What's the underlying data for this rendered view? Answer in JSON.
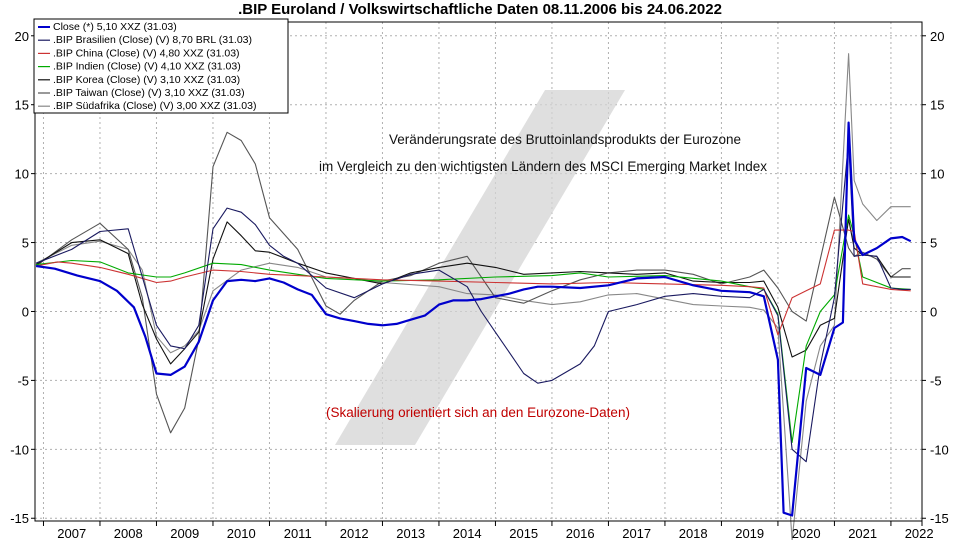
{
  "chart_data": {
    "type": "line",
    "title": ".BIP Euroland / Volkswirtschaftliche Daten 08.11.2006 bis 24.06.2022",
    "ylim": [
      -15.2,
      21
    ],
    "xlim": [
      2006.85,
      2022.55
    ],
    "y_ticks": [
      -15,
      -10,
      -5,
      0,
      5,
      10,
      15,
      20
    ],
    "x_ticks": [
      "2007",
      "2008",
      "2009",
      "2010",
      "2011",
      "2012",
      "2013",
      "2014",
      "2015",
      "2016",
      "2017",
      "2018",
      "2019",
      "2020",
      "2021",
      "2022"
    ],
    "grid": true,
    "legend_position": "top-left",
    "annotations": [
      "Veränderungsrate des Bruttoinlandsprodukts der Eurozone",
      "im Vergleich zu den wichtigsten Ländern des MSCI Emerging Market Index",
      "(Skalierung orientiert sich an den Eurozone-Daten)"
    ],
    "series": [
      {
        "name": "Close (*) 5,10 XXZ (31.03)",
        "color": "#0000cc",
        "x": [
          2006.87,
          2007.2,
          2007.6,
          2008.0,
          2008.3,
          2008.6,
          2008.8,
          2009.0,
          2009.25,
          2009.5,
          2009.75,
          2010.0,
          2010.25,
          2010.5,
          2010.75,
          2011.0,
          2011.25,
          2011.5,
          2011.75,
          2012.0,
          2012.25,
          2012.5,
          2012.75,
          2013.0,
          2013.25,
          2013.5,
          2013.75,
          2014.0,
          2014.25,
          2014.5,
          2014.75,
          2015.0,
          2015.25,
          2015.5,
          2015.75,
          2016.0,
          2016.5,
          2017.0,
          2017.5,
          2018.0,
          2018.5,
          2019.0,
          2019.5,
          2019.75,
          2020.0,
          2020.1,
          2020.25,
          2020.5,
          2020.75,
          2021.0,
          2021.15,
          2021.25,
          2021.35,
          2021.5,
          2021.75,
          2022.0,
          2022.2,
          2022.35
        ],
        "y": [
          3.3,
          3.1,
          2.6,
          2.2,
          1.5,
          0.3,
          -1.8,
          -4.5,
          -4.6,
          -4.0,
          -2.2,
          0.8,
          2.2,
          2.3,
          2.2,
          2.4,
          2.1,
          1.6,
          1.2,
          -0.2,
          -0.5,
          -0.7,
          -0.9,
          -1.0,
          -0.9,
          -0.6,
          -0.3,
          0.5,
          0.8,
          0.8,
          0.9,
          1.1,
          1.3,
          1.6,
          1.8,
          1.8,
          1.7,
          1.9,
          2.4,
          2.5,
          1.9,
          1.5,
          1.4,
          1.1,
          -3.5,
          -14.6,
          -14.8,
          -4.1,
          -4.6,
          -1.2,
          -0.8,
          13.7,
          5.2,
          4.1,
          4.6,
          5.3,
          5.4,
          5.1
        ]
      },
      {
        "name": ".BIP Brasilien (Close) (V) 8,70 BRL (31.03)",
        "color": "#1a1a60",
        "x": [
          2006.87,
          2007.5,
          2008.0,
          2008.5,
          2009.0,
          2009.25,
          2009.5,
          2009.75,
          2010.0,
          2010.25,
          2010.5,
          2010.75,
          2011.0,
          2011.25,
          2011.5,
          2012.0,
          2012.5,
          2013.0,
          2013.5,
          2014.0,
          2014.5,
          2014.75,
          2015.0,
          2015.25,
          2015.5,
          2015.75,
          2016.0,
          2016.5,
          2016.75,
          2017.0,
          2017.5,
          2018.0,
          2018.5,
          2019.0,
          2019.5,
          2019.75,
          2020.0,
          2020.25,
          2020.5,
          2020.75,
          2021.0,
          2021.25,
          2021.35,
          2021.5,
          2021.75,
          2022.0,
          2022.2,
          2022.35
        ],
        "y": [
          3.5,
          4.5,
          5.8,
          6.0,
          -1.0,
          -2.5,
          -2.7,
          -1.0,
          6.0,
          7.5,
          7.2,
          6.3,
          4.8,
          4.0,
          3.5,
          1.7,
          1.0,
          2.0,
          2.7,
          3.0,
          1.8,
          0.0,
          -1.5,
          -3.0,
          -4.5,
          -5.2,
          -5.0,
          -3.8,
          -2.5,
          0.0,
          0.5,
          1.1,
          1.3,
          1.1,
          1.0,
          1.6,
          -0.3,
          -10.0,
          -10.9,
          -3.9,
          1.0,
          12.4,
          4.0,
          4.1,
          4.0,
          1.7,
          1.6,
          1.6
        ]
      },
      {
        "name": ".BIP China (Close) (V) 4,80 XXZ (31.03)",
        "color": "#cc3333",
        "x": [
          2006.87,
          2007.25,
          2007.5,
          2008.0,
          2008.5,
          2009.0,
          2009.25,
          2009.5,
          2010.0,
          2010.5,
          2011.0,
          2011.5,
          2012.0,
          2012.5,
          2013.0,
          2014.0,
          2015.0,
          2016.0,
          2017.0,
          2018.0,
          2019.0,
          2019.5,
          2019.75,
          2020.0,
          2020.25,
          2020.5,
          2020.75,
          2021.0,
          2021.25,
          2021.35,
          2021.5,
          2022.0,
          2022.35
        ],
        "y": [
          3.3,
          3.6,
          3.5,
          3.2,
          2.7,
          2.1,
          2.2,
          2.5,
          3.0,
          2.9,
          2.7,
          2.6,
          2.5,
          2.4,
          2.3,
          2.2,
          2.1,
          2.0,
          2.1,
          2.0,
          1.9,
          1.8,
          1.7,
          -1.7,
          1.0,
          1.5,
          2.0,
          5.9,
          5.9,
          5.8,
          2.0,
          1.6,
          1.5
        ]
      },
      {
        "name": ".BIP Indien (Close) (V) 4,10 XXZ (31.03)",
        "color": "#00aa00",
        "x": [
          2006.87,
          2007.5,
          2008.0,
          2008.5,
          2009.0,
          2009.25,
          2009.5,
          2010.0,
          2010.5,
          2011.0,
          2011.5,
          2012.0,
          2013.0,
          2014.0,
          2015.0,
          2016.0,
          2016.5,
          2017.0,
          2018.0,
          2019.0,
          2019.5,
          2019.75,
          2020.0,
          2020.25,
          2020.5,
          2020.75,
          2021.0,
          2021.25,
          2021.35,
          2021.5,
          2022.0,
          2022.35
        ],
        "y": [
          3.4,
          3.7,
          3.6,
          2.8,
          2.5,
          2.5,
          2.8,
          3.5,
          3.4,
          3.0,
          2.7,
          2.4,
          2.2,
          2.3,
          2.5,
          2.6,
          2.8,
          2.5,
          2.6,
          2.2,
          1.8,
          1.6,
          -0.2,
          -9.5,
          -2.5,
          0.0,
          1.2,
          7.0,
          5.5,
          2.5,
          1.7,
          1.6
        ]
      },
      {
        "name": ".BIP Korea (Close) (V) 3,10 XXZ (31.03)",
        "color": "#111111",
        "x": [
          2006.87,
          2007.5,
          2008.0,
          2008.5,
          2008.75,
          2009.0,
          2009.25,
          2009.5,
          2009.75,
          2010.0,
          2010.25,
          2010.5,
          2010.75,
          2011.0,
          2011.5,
          2012.0,
          2012.5,
          2013.0,
          2013.5,
          2014.0,
          2014.5,
          2015.0,
          2015.5,
          2016.0,
          2016.5,
          2017.0,
          2017.5,
          2018.0,
          2018.5,
          2019.0,
          2019.5,
          2019.75,
          2020.0,
          2020.25,
          2020.5,
          2020.75,
          2021.0,
          2021.25,
          2021.35,
          2021.5,
          2021.75,
          2022.0,
          2022.35
        ],
        "y": [
          3.4,
          5.0,
          5.2,
          4.2,
          0.5,
          -2.0,
          -3.8,
          -2.7,
          -1.5,
          3.8,
          6.5,
          5.5,
          4.4,
          4.3,
          3.5,
          2.8,
          2.4,
          2.0,
          2.8,
          3.2,
          3.5,
          3.2,
          2.7,
          2.8,
          2.9,
          2.8,
          2.7,
          2.8,
          2.2,
          2.1,
          2.1,
          2.2,
          0.3,
          -3.3,
          -2.8,
          -1.0,
          -0.5,
          6.7,
          4.6,
          4.1,
          4.0,
          2.5,
          2.5
        ]
      },
      {
        "name": ".BIP Taiwan (Close) (V) 3,10 XXZ (31.03)",
        "color": "#555555",
        "x": [
          2006.87,
          2007.5,
          2008.0,
          2008.5,
          2008.75,
          2009.0,
          2009.25,
          2009.5,
          2009.75,
          2010.0,
          2010.25,
          2010.5,
          2010.75,
          2011.0,
          2011.5,
          2012.0,
          2012.25,
          2012.5,
          2013.0,
          2013.5,
          2014.0,
          2014.5,
          2015.0,
          2015.5,
          2016.0,
          2016.5,
          2017.0,
          2017.5,
          2018.0,
          2018.5,
          2019.0,
          2019.5,
          2019.75,
          2020.0,
          2020.25,
          2020.5,
          2020.75,
          2021.0,
          2021.25,
          2021.35,
          2021.5,
          2021.75,
          2022.0,
          2022.2,
          2022.35
        ],
        "y": [
          3.3,
          5.2,
          6.4,
          4.5,
          1.0,
          -6.0,
          -8.8,
          -7.0,
          -2.0,
          10.5,
          13.0,
          12.4,
          10.7,
          6.8,
          4.5,
          0.4,
          -0.2,
          0.8,
          2.2,
          2.6,
          3.5,
          4.0,
          1.0,
          0.6,
          1.5,
          2.3,
          2.8,
          3.0,
          3.0,
          2.7,
          2.0,
          2.5,
          3.0,
          1.7,
          0.0,
          -0.7,
          3.8,
          8.3,
          4.6,
          4.0,
          4.3,
          3.8,
          2.5,
          3.1,
          3.1
        ]
      },
      {
        "name": ".BIP Südafrika (Close) (V) 3,00 XXZ (31.03)",
        "color": "#888888",
        "x": [
          2006.87,
          2007.5,
          2008.0,
          2008.5,
          2008.75,
          2009.0,
          2009.25,
          2009.5,
          2009.75,
          2010.0,
          2010.5,
          2011.0,
          2011.5,
          2012.0,
          2012.5,
          2013.0,
          2014.0,
          2014.5,
          2015.0,
          2015.5,
          2016.0,
          2016.5,
          2017.0,
          2017.5,
          2018.0,
          2018.5,
          2019.0,
          2019.5,
          2019.75,
          2020.0,
          2020.25,
          2020.5,
          2020.75,
          2021.0,
          2021.25,
          2021.35,
          2021.5,
          2021.75,
          2022.0,
          2022.2,
          2022.35
        ],
        "y": [
          3.5,
          4.8,
          5.1,
          4.5,
          3.0,
          -1.8,
          -3.0,
          -2.5,
          -1.4,
          1.5,
          3.0,
          3.5,
          3.2,
          2.5,
          2.4,
          2.1,
          1.8,
          1.3,
          1.2,
          0.8,
          0.5,
          0.7,
          1.2,
          1.3,
          0.9,
          0.5,
          0.4,
          0.3,
          0.1,
          -1.2,
          -16.6,
          -6.5,
          -2.5,
          -1.0,
          18.7,
          9.5,
          7.8,
          6.6,
          7.6,
          7.6,
          7.6
        ]
      }
    ]
  }
}
